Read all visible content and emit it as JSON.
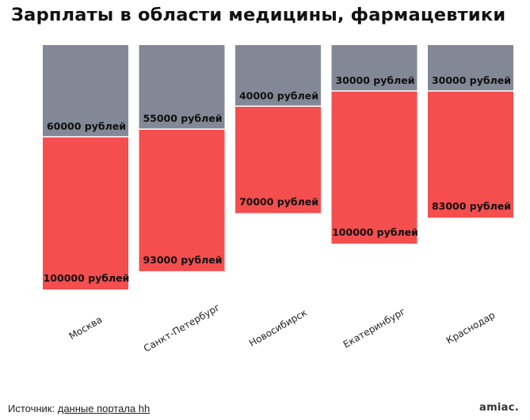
{
  "title": "Зарплаты в области медицины, фармацевтики",
  "footer": {
    "source_label": "Источник:",
    "source_link": "данные портала hh"
  },
  "logo": "amiac.",
  "colors": {
    "segment_top": "#838896",
    "segment_bottom": "#f44e4f",
    "label": "#111111"
  },
  "chart_data": {
    "type": "bar",
    "stacked": true,
    "categories": [
      "Москва",
      "Санкт-Петербург",
      "Новосибирск",
      "Екатеринбург",
      "Краснодар"
    ],
    "series": [
      {
        "values": [
          100000,
          93000,
          70000,
          100000,
          83000
        ],
        "labels": [
          "100000 рублей",
          "93000 рублей",
          "70000 рублей",
          "100000 рублей",
          "83000 рублей"
        ]
      },
      {
        "values": [
          60000,
          55000,
          40000,
          30000,
          30000
        ],
        "labels": [
          "60000 рублей",
          "55000 рублей",
          "40000 рублей",
          "30000 рублей",
          "30000 рублей"
        ]
      }
    ],
    "value_axis_visible": false,
    "grid": false
  }
}
